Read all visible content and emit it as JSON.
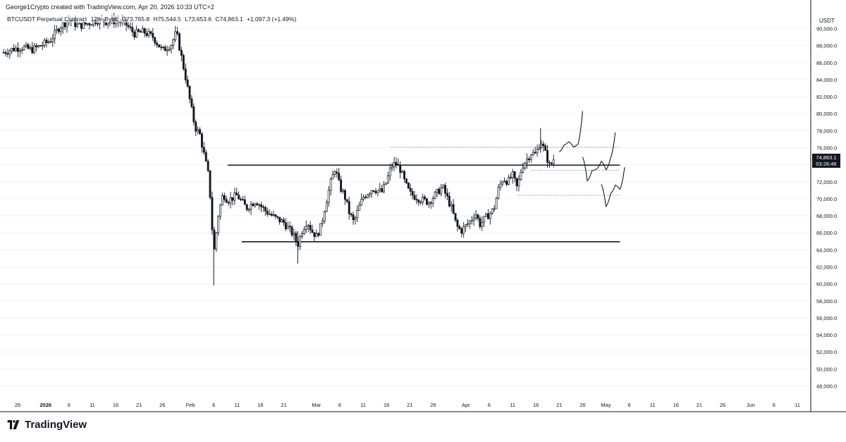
{
  "header": {
    "attribution": "George1Crypto created with TradingView.com, Apr 20, 2026 10:33 UTC+2"
  },
  "legend": {
    "symbol": "BTCUSDT Perpetual Contract",
    "interval": "12h",
    "exchange": "Bybit",
    "open": "O73,765.8",
    "high": "H75,544.5",
    "low": "L73,653.6",
    "close": "C74,863.1",
    "change": "+1,097.3 (+1.49%)"
  },
  "axis": {
    "currency": "USDT",
    "last_price": "74,863.1",
    "countdown": "03:26:46"
  },
  "footer": {
    "brand": "TradingView"
  },
  "colors": {
    "up": "#131722",
    "down": "#131722",
    "line": "#131722",
    "grid": "#f0f3fa",
    "axis_border": "#131722"
  },
  "icons": [
    "tradingview-logo-icon"
  ],
  "chart_data": {
    "type": "candlestick",
    "title": "",
    "y_axis": {
      "ylim": [
        46500,
        91000
      ],
      "ticks": [
        48000,
        50000,
        52000,
        54000,
        56000,
        58000,
        60000,
        62000,
        64000,
        66000,
        68000,
        70000,
        72000,
        74000,
        76000,
        78000,
        80000,
        82000,
        84000,
        86000,
        88000,
        90000
      ],
      "tick_labels": [
        "48,000.0",
        "50,000.0",
        "52,000.0",
        "54,000.0",
        "56,000.0",
        "58,000.0",
        "60,000.0",
        "62,000.0",
        "64,000.0",
        "66,000.0",
        "68,000.0",
        "70,000.0",
        "72,000.0",
        "74,000.0",
        "76,000.0",
        "78,000.0",
        "80,000.0",
        "82,000.0",
        "84,000.0",
        "86,000.0",
        "88,000.0",
        "90,000.0"
      ]
    },
    "x_axis": {
      "tick_labels": [
        "26",
        "2026",
        "6",
        "11",
        "16",
        "21",
        "26",
        "Feb",
        "6",
        "11",
        "16",
        "21",
        "Mar",
        "6",
        "11",
        "16",
        "21",
        "26",
        "Apr",
        "6",
        "11",
        "16",
        "21",
        "26",
        "May",
        "6",
        "11",
        "16",
        "21",
        "26",
        "Jun",
        "6",
        "11"
      ],
      "bold_labels": [
        "2026"
      ]
    },
    "series": [
      {
        "type": "close-path",
        "points": [
          [
            "2025-12-23",
            87200
          ],
          [
            "2025-12-25",
            87600
          ],
          [
            "2025-12-27",
            87800
          ],
          [
            "2025-12-29",
            87500
          ],
          [
            "2025-12-31",
            88000
          ],
          [
            "2026-01-02",
            88600
          ],
          [
            "2026-01-04",
            90200
          ],
          [
            "2026-01-06",
            91000
          ],
          [
            "2026-01-08",
            90300
          ],
          [
            "2026-01-10",
            90600
          ],
          [
            "2026-01-12",
            91000
          ],
          [
            "2026-01-14",
            90800
          ],
          [
            "2026-01-16",
            90900
          ],
          [
            "2026-01-18",
            90600
          ],
          [
            "2026-01-20",
            89400
          ],
          [
            "2026-01-22",
            89600
          ],
          [
            "2026-01-24",
            89000
          ],
          [
            "2026-01-26",
            87400
          ],
          [
            "2026-01-28",
            88200
          ],
          [
            "2026-01-29",
            89600
          ],
          [
            "2026-01-31",
            84200
          ],
          [
            "2026-02-01",
            81200
          ],
          [
            "2026-02-02",
            78400
          ],
          [
            "2026-02-03",
            77600
          ],
          [
            "2026-02-04",
            75000
          ],
          [
            "2026-02-05",
            72400
          ],
          [
            "2026-02-06",
            63500
          ],
          [
            "2026-02-07",
            68200
          ],
          [
            "2026-02-08",
            70600
          ],
          [
            "2026-02-09",
            69800
          ],
          [
            "2026-02-11",
            70400
          ],
          [
            "2026-02-13",
            68900
          ],
          [
            "2026-02-15",
            69800
          ],
          [
            "2026-02-17",
            68600
          ],
          [
            "2026-02-19",
            67800
          ],
          [
            "2026-02-21",
            67200
          ],
          [
            "2026-02-23",
            65800
          ],
          [
            "2026-02-24",
            64600
          ],
          [
            "2026-02-25",
            66400
          ],
          [
            "2026-02-26",
            67400
          ],
          [
            "2026-02-27",
            66200
          ],
          [
            "2026-02-28",
            65600
          ],
          [
            "2026-03-01",
            66800
          ],
          [
            "2026-03-02",
            69500
          ],
          [
            "2026-03-03",
            71800
          ],
          [
            "2026-03-04",
            73600
          ],
          [
            "2026-03-05",
            71400
          ],
          [
            "2026-03-06",
            70400
          ],
          [
            "2026-03-07",
            68400
          ],
          [
            "2026-03-08",
            67200
          ],
          [
            "2026-03-09",
            68800
          ],
          [
            "2026-03-10",
            70200
          ],
          [
            "2026-03-12",
            71200
          ],
          [
            "2026-03-14",
            70800
          ],
          [
            "2026-03-15",
            72000
          ],
          [
            "2026-03-16",
            73800
          ],
          [
            "2026-03-17",
            74200
          ],
          [
            "2026-03-18",
            73400
          ],
          [
            "2026-03-19",
            71800
          ],
          [
            "2026-03-20",
            70600
          ],
          [
            "2026-03-22",
            70000
          ],
          [
            "2026-03-24",
            69600
          ],
          [
            "2026-03-26",
            70800
          ],
          [
            "2026-03-27",
            71400
          ],
          [
            "2026-03-29",
            68800
          ],
          [
            "2026-03-30",
            66800
          ],
          [
            "2026-03-31",
            66200
          ],
          [
            "2026-04-02",
            67400
          ],
          [
            "2026-04-03",
            68400
          ],
          [
            "2026-04-04",
            67000
          ],
          [
            "2026-04-05",
            67600
          ],
          [
            "2026-04-07",
            68800
          ],
          [
            "2026-04-08",
            71200
          ],
          [
            "2026-04-09",
            72400
          ],
          [
            "2026-04-10",
            72000
          ],
          [
            "2026-04-11",
            72800
          ],
          [
            "2026-04-12",
            71200
          ],
          [
            "2026-04-13",
            73800
          ],
          [
            "2026-04-14",
            74600
          ],
          [
            "2026-04-15",
            75400
          ],
          [
            "2026-04-16",
            75200
          ],
          [
            "2026-04-17",
            76900
          ],
          [
            "2026-04-18",
            75400
          ],
          [
            "2026-04-19",
            73766
          ],
          [
            "2026-04-20",
            74863
          ]
        ]
      }
    ],
    "last_price": 74863.1,
    "horizontal_levels": [
      {
        "style": "solid",
        "value": 73950,
        "x_start": "2026-02-09",
        "x_end": "2026-05-04"
      },
      {
        "style": "solid",
        "value": 64950,
        "x_start": "2026-02-12",
        "x_end": "2026-05-04"
      },
      {
        "style": "dotted",
        "value": 76050,
        "x_start": "2026-03-16",
        "x_end": "2026-05-04"
      },
      {
        "style": "dotted",
        "value": 73350,
        "x_start": "2026-04-15",
        "x_end": "2026-05-04"
      },
      {
        "style": "dotted",
        "value": 70400,
        "x_start": "2026-04-12",
        "x_end": "2026-05-04"
      }
    ],
    "projection_paths": [
      [
        [
          "2026-04-21",
          75500
        ],
        [
          "2026-04-22",
          76300
        ],
        [
          "2026-04-23",
          76700
        ],
        [
          "2026-04-24",
          76100
        ],
        [
          "2026-04-25",
          76400
        ],
        [
          "2026-04-26",
          80300
        ]
      ],
      [
        [
          "2026-04-26",
          74900
        ],
        [
          "2026-04-27",
          72100
        ],
        [
          "2026-04-28",
          73300
        ],
        [
          "2026-04-29",
          73500
        ],
        [
          "2026-04-30",
          74400
        ],
        [
          "2026-05-01",
          73400
        ],
        [
          "2026-05-02",
          74800
        ],
        [
          "2026-05-03",
          77800
        ]
      ],
      [
        [
          "2026-04-30",
          71700
        ],
        [
          "2026-05-01",
          69100
        ],
        [
          "2026-05-02",
          70600
        ],
        [
          "2026-05-03",
          71600
        ],
        [
          "2026-05-04",
          71100
        ],
        [
          "2026-05-05",
          73700
        ]
      ]
    ],
    "grid": false,
    "legend": "top-left"
  }
}
